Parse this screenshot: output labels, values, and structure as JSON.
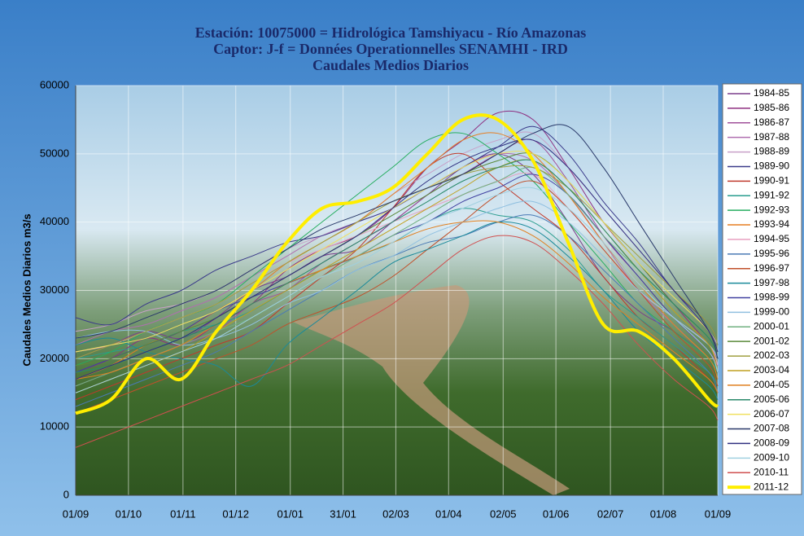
{
  "chart_data": {
    "type": "line",
    "title_lines": [
      "Estación: 10075000 = Hidrológica Tamshiyacu - Río Amazonas",
      "Captor: J-f = Données Operationnelles SENAMHI - IRD",
      "Caudales Medios Diarios"
    ],
    "y_label": "Caudales Medios Diarios m3/s",
    "x": [
      0,
      20,
      40,
      60,
      80,
      100,
      120,
      140,
      160,
      180,
      200,
      220,
      240,
      260,
      280,
      300,
      320,
      340,
      360,
      365
    ],
    "xlim": [
      0,
      365
    ],
    "xticks": [
      {
        "value": 0,
        "label": "01/09"
      },
      {
        "value": 30,
        "label": "01/10"
      },
      {
        "value": 61,
        "label": "01/11"
      },
      {
        "value": 91,
        "label": "01/12"
      },
      {
        "value": 122,
        "label": "01/01"
      },
      {
        "value": 152,
        "label": "31/01"
      },
      {
        "value": 182,
        "label": "02/03"
      },
      {
        "value": 212,
        "label": "01/04"
      },
      {
        "value": 243,
        "label": "02/05"
      },
      {
        "value": 273,
        "label": "01/06"
      },
      {
        "value": 304,
        "label": "02/07"
      },
      {
        "value": 334,
        "label": "01/08"
      },
      {
        "value": 365,
        "label": "01/09"
      }
    ],
    "ylim": [
      0,
      60000
    ],
    "yticks": [
      0,
      10000,
      20000,
      30000,
      40000,
      50000,
      60000
    ],
    "grid": true,
    "legend": "right",
    "series": [
      {
        "name": "1984-85",
        "color": "#7b3f8c",
        "values": [
          20000,
          22000,
          24000,
          23000,
          26000,
          30000,
          32000,
          35000,
          36000,
          40000,
          44000,
          48000,
          50000,
          47000,
          40000,
          32000,
          27000,
          24000,
          20000,
          18000
        ]
      },
      {
        "name": "1985-86",
        "color": "#8e2f80",
        "values": [
          18000,
          20000,
          23000,
          22000,
          25000,
          28000,
          33000,
          36000,
          38000,
          42000,
          48000,
          52000,
          56000,
          55000,
          48000,
          40000,
          34000,
          28000,
          22000,
          20000
        ]
      },
      {
        "name": "1986-87",
        "color": "#a0509a",
        "values": [
          16000,
          18000,
          20000,
          22000,
          24000,
          28000,
          30000,
          34000,
          37000,
          40000,
          44000,
          47000,
          50000,
          52000,
          46000,
          38000,
          32000,
          26000,
          21000,
          19000
        ]
      },
      {
        "name": "1987-88",
        "color": "#b06fb0",
        "values": [
          22000,
          24000,
          25000,
          27000,
          29000,
          32000,
          35000,
          38000,
          40000,
          42000,
          45000,
          48000,
          50000,
          49000,
          44000,
          37000,
          30000,
          25000,
          20000,
          18000
        ]
      },
      {
        "name": "1988-89",
        "color": "#c8a0c8",
        "values": [
          24000,
          25000,
          27000,
          28000,
          30000,
          33000,
          36000,
          38000,
          40000,
          44000,
          47000,
          50000,
          52000,
          53000,
          48000,
          42000,
          36000,
          30000,
          24000,
          22000
        ]
      },
      {
        "name": "1989-90",
        "color": "#3a3a8a",
        "values": [
          26000,
          25000,
          28000,
          30000,
          33000,
          35000,
          37000,
          38000,
          40000,
          42000,
          45000,
          48000,
          51000,
          54000,
          50000,
          43000,
          37000,
          30000,
          25000,
          22000
        ]
      },
      {
        "name": "1990-91",
        "color": "#c0392b",
        "values": [
          14000,
          16000,
          18000,
          20000,
          22000,
          24000,
          28000,
          32000,
          36000,
          42000,
          48000,
          50000,
          46000,
          42000,
          38000,
          32000,
          26000,
          22000,
          17000,
          15000
        ]
      },
      {
        "name": "1991-92",
        "color": "#2a9d8f",
        "values": [
          20000,
          21000,
          22000,
          24000,
          25000,
          27000,
          30000,
          33000,
          35000,
          37000,
          40000,
          42000,
          41000,
          40000,
          36000,
          30000,
          26000,
          22000,
          18000,
          16000
        ]
      },
      {
        "name": "1992-93",
        "color": "#27ae60",
        "values": [
          19000,
          21000,
          24000,
          26000,
          28000,
          32000,
          36000,
          40000,
          44000,
          48000,
          52000,
          53000,
          50000,
          46000,
          40000,
          34000,
          28000,
          24000,
          20000,
          18000
        ]
      },
      {
        "name": "1993-94",
        "color": "#e67e22",
        "values": [
          17000,
          19000,
          22000,
          24000,
          27000,
          30000,
          34000,
          37000,
          40000,
          44000,
          48000,
          52000,
          53000,
          50000,
          44000,
          37000,
          31000,
          25000,
          20000,
          17000
        ]
      },
      {
        "name": "1994-95",
        "color": "#e8a0c0",
        "values": [
          21000,
          22000,
          24000,
          26000,
          28000,
          31000,
          34000,
          36000,
          38000,
          40000,
          42000,
          44000,
          46000,
          47000,
          42000,
          36000,
          30000,
          26000,
          22000,
          19000
        ]
      },
      {
        "name": "1995-96",
        "color": "#4a7ab5",
        "values": [
          13000,
          15000,
          17000,
          19000,
          21000,
          24000,
          27000,
          30000,
          33000,
          35000,
          37000,
          38000,
          40000,
          41000,
          38000,
          33000,
          28000,
          23000,
          18000,
          15000
        ]
      },
      {
        "name": "1996-97",
        "color": "#c0502a",
        "values": [
          12000,
          14000,
          16000,
          18000,
          20000,
          22000,
          25000,
          27000,
          29000,
          32000,
          36000,
          40000,
          44000,
          46000,
          42000,
          36000,
          30000,
          24000,
          19000,
          16000
        ]
      },
      {
        "name": "1997-98",
        "color": "#1a8a9a",
        "values": [
          22000,
          23000,
          21000,
          20000,
          19000,
          16000,
          22000,
          26000,
          30000,
          34000,
          36000,
          38000,
          40000,
          39000,
          35000,
          30000,
          24000,
          20000,
          16000,
          14000
        ]
      },
      {
        "name": "1998-99",
        "color": "#4040a0",
        "values": [
          18000,
          20000,
          22000,
          24000,
          27000,
          29000,
          31000,
          33000,
          35000,
          38000,
          40000,
          43000,
          45000,
          47000,
          44000,
          38000,
          32000,
          26000,
          21000,
          18000
        ]
      },
      {
        "name": "1999-00",
        "color": "#90c0e0",
        "values": [
          23000,
          24000,
          24000,
          22000,
          23000,
          25000,
          28000,
          30000,
          33000,
          35000,
          38000,
          40000,
          42000,
          43000,
          40000,
          35000,
          30000,
          26000,
          22000,
          20000
        ]
      },
      {
        "name": "2000-01",
        "color": "#70b080",
        "values": [
          16000,
          18000,
          20000,
          22000,
          24000,
          26000,
          29000,
          32000,
          35000,
          38000,
          41000,
          44000,
          46000,
          48000,
          44000,
          38000,
          33000,
          28000,
          23000,
          20000
        ]
      },
      {
        "name": "2001-02",
        "color": "#5a8a3a",
        "values": [
          19000,
          20000,
          22000,
          24000,
          26000,
          29000,
          32000,
          35000,
          38000,
          41000,
          44000,
          47000,
          49000,
          50000,
          46000,
          40000,
          34000,
          28000,
          23000,
          20000
        ]
      },
      {
        "name": "2002-03",
        "color": "#a0a040",
        "values": [
          20000,
          22000,
          24000,
          26000,
          28000,
          31000,
          34000,
          37000,
          40000,
          43000,
          45000,
          47000,
          48000,
          48000,
          45000,
          40000,
          35000,
          30000,
          25000,
          22000
        ]
      },
      {
        "name": "2003-04",
        "color": "#c0a020",
        "values": [
          15000,
          17000,
          19000,
          21000,
          24000,
          27000,
          30000,
          33000,
          36000,
          39000,
          42000,
          45000,
          48000,
          49000,
          45000,
          39000,
          33000,
          27000,
          22000,
          18000
        ]
      },
      {
        "name": "2004-05",
        "color": "#e08020",
        "values": [
          17000,
          18000,
          20000,
          22000,
          25000,
          28000,
          31000,
          33000,
          35000,
          37000,
          39000,
          40000,
          40000,
          38000,
          34000,
          29000,
          25000,
          21000,
          17000,
          15000
        ]
      },
      {
        "name": "2005-06",
        "color": "#2a8a6a",
        "values": [
          18000,
          19000,
          21000,
          23000,
          25000,
          28000,
          31000,
          34000,
          37000,
          40000,
          43000,
          46000,
          48000,
          49000,
          45000,
          39000,
          33000,
          28000,
          23000,
          20000
        ]
      },
      {
        "name": "2006-07",
        "color": "#f0e060",
        "values": [
          21000,
          22000,
          23000,
          25000,
          27000,
          30000,
          33000,
          36000,
          39000,
          42000,
          45000,
          48000,
          50000,
          50000,
          46000,
          40000,
          34000,
          29000,
          24000,
          21000
        ]
      },
      {
        "name": "2007-08",
        "color": "#2a3a6a",
        "values": [
          23000,
          24000,
          26000,
          28000,
          30000,
          33000,
          36000,
          39000,
          41000,
          43000,
          45000,
          47000,
          50000,
          53000,
          54000,
          48000,
          40000,
          32000,
          24000,
          20000
        ]
      },
      {
        "name": "2008-09",
        "color": "#303080",
        "values": [
          17000,
          19000,
          21000,
          23000,
          26000,
          29000,
          32000,
          35000,
          38000,
          42000,
          46000,
          49000,
          51000,
          52000,
          48000,
          42000,
          36000,
          30000,
          24000,
          21000
        ]
      },
      {
        "name": "2009-10",
        "color": "#a0d0e0",
        "values": [
          15000,
          17000,
          19000,
          21000,
          23000,
          26000,
          29000,
          32000,
          34000,
          37000,
          40000,
          42000,
          44000,
          45000,
          42000,
          37000,
          31000,
          26000,
          21000,
          18000
        ]
      },
      {
        "name": "2010-11",
        "color": "#d05050",
        "values": [
          7000,
          9000,
          11000,
          13000,
          15000,
          17000,
          19000,
          22000,
          25000,
          28000,
          32000,
          36000,
          38000,
          37000,
          33000,
          28000,
          22000,
          17000,
          13000,
          11000
        ]
      },
      {
        "name": "2011-12",
        "color": "#ffee00",
        "width": 4,
        "values": [
          12000,
          14000,
          20000,
          17000,
          24000,
          30000,
          37000,
          42000,
          43000,
          45000,
          50000,
          55000,
          55000,
          49000,
          37000,
          25000,
          24000,
          20000,
          14000,
          13000
        ]
      }
    ]
  }
}
